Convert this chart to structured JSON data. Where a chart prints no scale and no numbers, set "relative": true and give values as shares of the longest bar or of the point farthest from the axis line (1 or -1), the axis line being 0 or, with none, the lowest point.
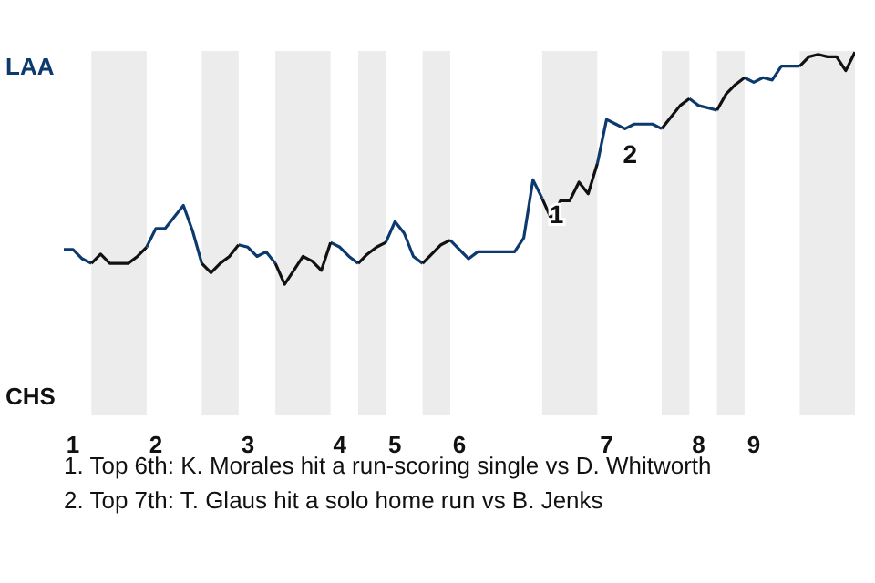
{
  "chart_data": {
    "type": "line",
    "relative": true,
    "categories": [
      null,
      "1",
      null,
      null,
      null,
      null,
      null,
      null,
      null,
      null,
      "2",
      null,
      null,
      null,
      null,
      null,
      null,
      null,
      null,
      null,
      "3",
      null,
      null,
      null,
      null,
      null,
      null,
      null,
      null,
      null,
      "4",
      null,
      null,
      null,
      null,
      null,
      "5",
      null,
      null,
      null,
      null,
      null,
      null,
      "6",
      null,
      null,
      null,
      null,
      null,
      null,
      null,
      null,
      null,
      null,
      null,
      null,
      null,
      null,
      null,
      "7",
      null,
      null,
      null,
      null,
      null,
      null,
      null,
      null,
      null,
      "8",
      null,
      null,
      null,
      null,
      null,
      "9",
      null,
      null,
      null,
      null,
      null,
      null,
      null,
      null,
      null,
      null,
      null
    ],
    "series": [
      {
        "color": "#0d3a6e",
        "values": [
          0.15,
          0.15,
          0.11,
          0.09,
          null,
          null,
          null,
          null,
          null,
          0.16,
          0.24,
          0.24,
          0.29,
          0.34,
          0.23,
          0.09,
          null,
          null,
          null,
          0.17,
          0.16,
          0.12,
          0.14,
          0.09,
          null,
          null,
          null,
          null,
          null,
          0.18,
          0.16,
          0.12,
          0.09,
          null,
          null,
          0.18,
          0.27,
          0.22,
          0.12,
          0.09,
          null,
          null,
          0.19,
          0.15,
          0.11,
          0.14,
          0.14,
          0.14,
          0.14,
          0.14,
          0.2,
          0.45,
          0.37,
          null,
          null,
          null,
          null,
          null,
          0.52,
          0.71,
          0.69,
          0.67,
          0.69,
          0.69,
          0.69,
          0.67,
          null,
          null,
          0.8,
          0.77,
          0.76,
          0.75,
          null,
          null,
          0.89,
          0.87,
          0.89,
          0.88,
          0.94,
          0.94,
          0.94,
          null,
          null,
          null,
          null,
          null,
          null
        ]
      },
      {
        "color": "#111111",
        "values": [
          null,
          null,
          null,
          0.09,
          0.13,
          0.09,
          0.09,
          0.09,
          0.12,
          0.16,
          null,
          null,
          null,
          null,
          null,
          0.09,
          0.05,
          0.09,
          0.12,
          0.17,
          null,
          null,
          null,
          0.09,
          0,
          0.06,
          0.12,
          0.1,
          0.06,
          0.18,
          null,
          null,
          0.09,
          0.13,
          0.16,
          0.18,
          null,
          null,
          null,
          0.09,
          0.13,
          0.17,
          0.19,
          null,
          null,
          null,
          null,
          null,
          null,
          null,
          null,
          null,
          0.37,
          0.28,
          0.36,
          0.36,
          0.44,
          0.39,
          0.52,
          null,
          null,
          null,
          null,
          null,
          null,
          0.67,
          0.72,
          0.77,
          0.8,
          null,
          null,
          0.75,
          0.82,
          0.86,
          0.89,
          null,
          null,
          null,
          null,
          null,
          0.94,
          0.98,
          0.99,
          0.98,
          0.98,
          0.92,
          1
        ]
      }
    ],
    "annotations": [
      "LAA",
      "CHS",
      "1",
      "2",
      "1. Top 6th: K. Morales hit a run-scoring single vs D. Whitworth",
      "2. Top 7th: T. Glaus hit a solo home run vs B. Jenks"
    ]
  }
}
